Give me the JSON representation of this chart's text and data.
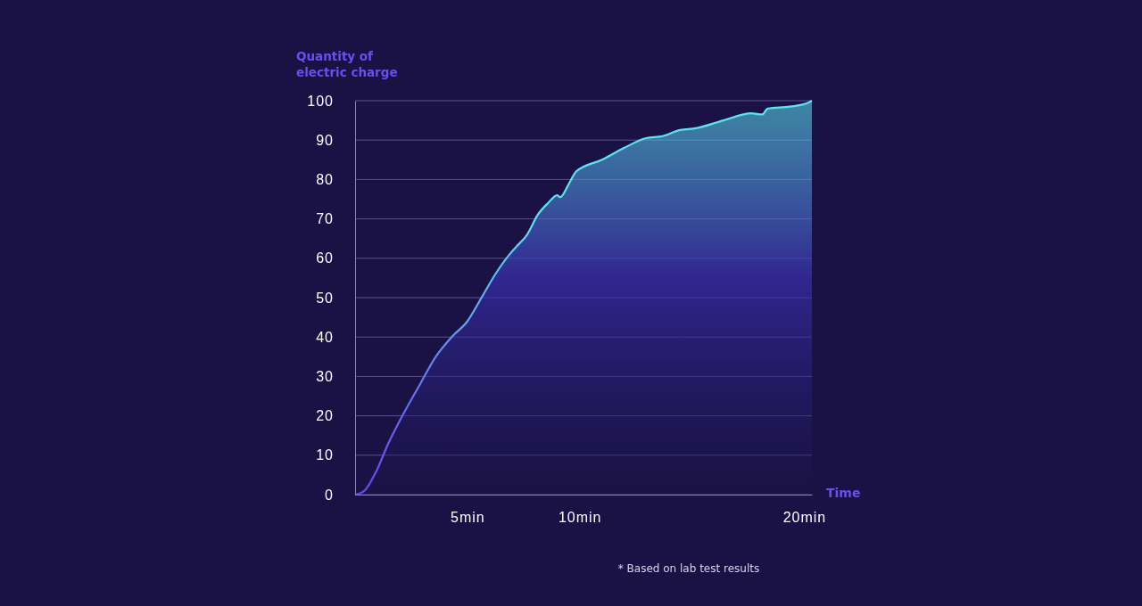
{
  "chart_data": {
    "type": "area",
    "ylabel": "Quantity of\nelectric charge",
    "xlabel": "Time",
    "series": [
      {
        "color": "#5ce4f2",
        "x": [
          0,
          0.42,
          0.95,
          1.48,
          2.01,
          2.89,
          3.59,
          4.3,
          5,
          5.63,
          6.25,
          6.88,
          7.19,
          7.66,
          8.13,
          8.59,
          9.0,
          9.13,
          9.53,
          9.84,
          10.99,
          11.97,
          12.96,
          13.69,
          14.43,
          15.17,
          16.4,
          17.64,
          18.13,
          18.37,
          19.36,
          20.1,
          20.34
        ],
        "values": [
          0,
          1,
          6,
          13,
          19,
          28,
          35,
          40,
          44,
          50,
          56,
          61,
          63,
          66,
          71,
          74,
          76,
          75.5,
          79,
          82,
          85,
          88,
          90.5,
          91,
          92.5,
          93,
          95,
          96.8,
          96.5,
          98,
          98.5,
          99.3,
          100
        ]
      }
    ],
    "xlim": [
      0,
      20.34
    ],
    "xticks": [
      {
        "value": 5,
        "label": "5min"
      },
      {
        "value": 10,
        "label": "10min"
      },
      {
        "value": 20,
        "label": "20min"
      }
    ],
    "ylim": [
      0,
      100
    ],
    "yticks": [
      0,
      10,
      20,
      30,
      40,
      50,
      60,
      70,
      80,
      90,
      100
    ],
    "grid": "y",
    "annotations": [
      "* Based on lab test results"
    ]
  }
}
